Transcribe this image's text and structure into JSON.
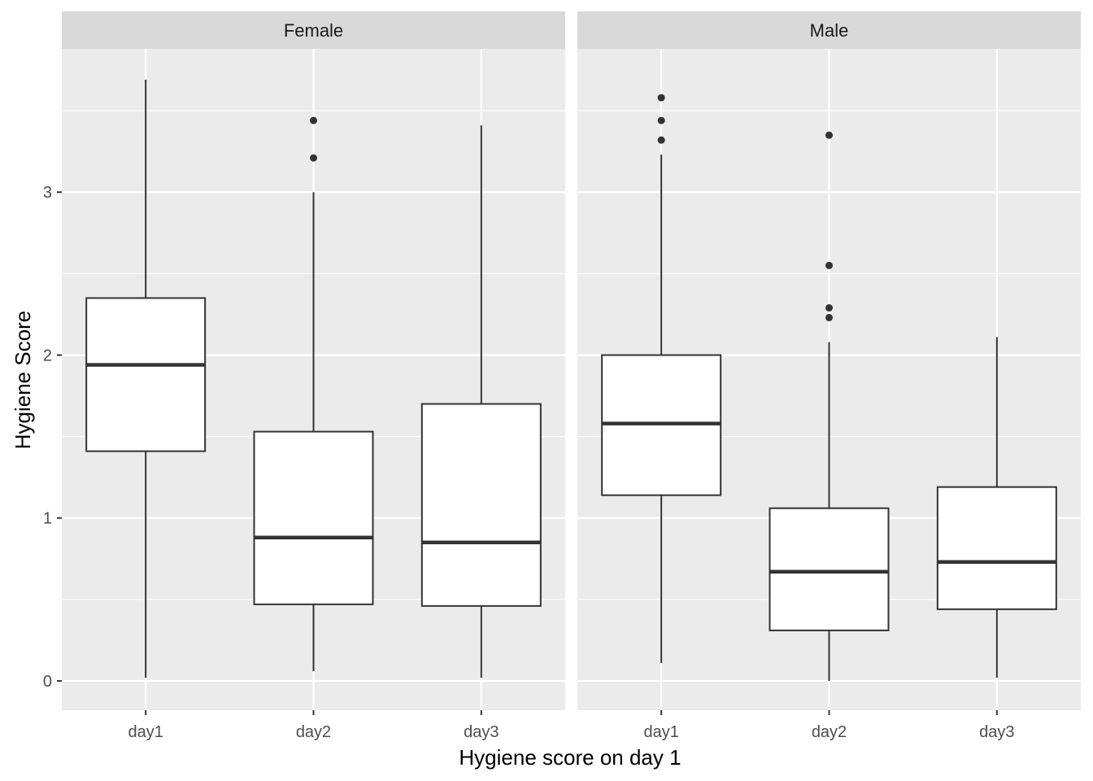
{
  "chart_data": {
    "type": "boxplot",
    "facet_variable": "gender",
    "xlabel": "Hygiene score on day 1",
    "ylabel": "Hygiene Score",
    "ylim": [
      -0.18,
      3.88
    ],
    "yticks": [
      0,
      1,
      2,
      3
    ],
    "categories": [
      "day1",
      "day2",
      "day3"
    ],
    "grid": true,
    "colors": {
      "panel_bg": "#ebebeb",
      "strip_bg": "#d9d9d9",
      "grid": "#ffffff",
      "box_fill": "#ffffff",
      "box_line": "#333333"
    },
    "panels": [
      {
        "label": "Female",
        "boxes": [
          {
            "category": "day1",
            "lower": 0.02,
            "q1": 1.41,
            "median": 1.94,
            "q3": 2.35,
            "upper": 3.69,
            "outliers": []
          },
          {
            "category": "day2",
            "lower": 0.06,
            "q1": 0.47,
            "median": 0.88,
            "q3": 1.53,
            "upper": 3.0,
            "outliers": [
              3.21,
              3.44
            ]
          },
          {
            "category": "day3",
            "lower": 0.02,
            "q1": 0.46,
            "median": 0.85,
            "q3": 1.7,
            "upper": 3.41,
            "outliers": []
          }
        ]
      },
      {
        "label": "Male",
        "boxes": [
          {
            "category": "day1",
            "lower": 0.11,
            "q1": 1.14,
            "median": 1.58,
            "q3": 2.0,
            "upper": 3.23,
            "outliers": [
              3.32,
              3.44,
              3.58
            ]
          },
          {
            "category": "day2",
            "lower": 0.0,
            "q1": 0.31,
            "median": 0.67,
            "q3": 1.06,
            "upper": 2.08,
            "outliers": [
              2.23,
              2.29,
              2.55,
              3.35
            ]
          },
          {
            "category": "day3",
            "lower": 0.02,
            "q1": 0.44,
            "median": 0.73,
            "q3": 1.19,
            "upper": 2.11,
            "outliers": []
          }
        ]
      }
    ]
  }
}
